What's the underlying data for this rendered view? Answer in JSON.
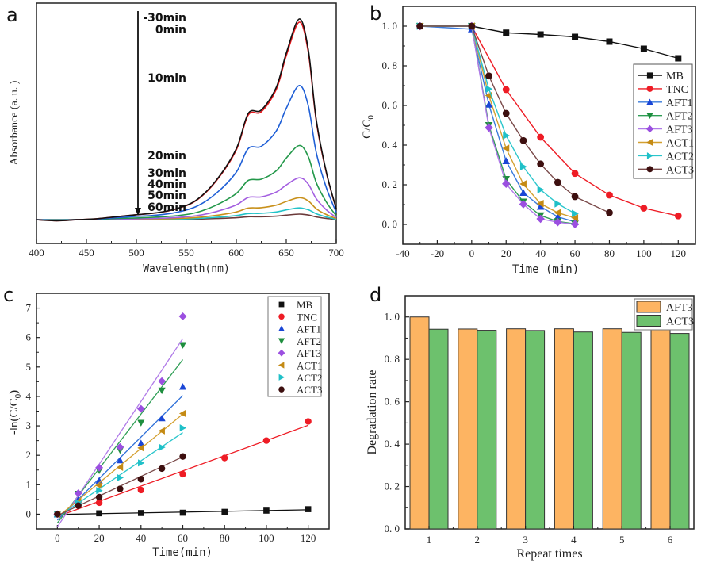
{
  "figure": {
    "panels": [
      "a",
      "b",
      "c",
      "d"
    ]
  },
  "chart_data": [
    {
      "panel": "a",
      "type": "line",
      "title": "",
      "xlabel": "Wavelength(nm)",
      "ylabel": "Absorbance (a. u. )",
      "xlim": [
        400,
        700
      ],
      "ylim": [
        -0.118,
        1.079
      ],
      "x_ticks": [
        400,
        450,
        500,
        550,
        600,
        650,
        700
      ],
      "y_ticks": [],
      "grid": false,
      "annotation": {
        "type": "arrow",
        "direction": "down",
        "meaning": "decreasing absorbance with irradiation time"
      },
      "x": [
        400,
        420,
        440,
        460,
        480,
        500,
        520,
        540,
        560,
        580,
        600,
        612,
        625,
        640,
        650,
        663,
        672,
        680,
        690,
        700
      ],
      "series": [
        {
          "name": "-30min",
          "color": "#111111",
          "values": [
            0,
            -0.005,
            0,
            0.005,
            0.015,
            0.025,
            0.035,
            0.055,
            0.098,
            0.197,
            0.354,
            0.53,
            0.547,
            0.66,
            0.83,
            1.0,
            0.85,
            0.5,
            0.24,
            0.055
          ]
        },
        {
          "name": "0min",
          "color": "#e8161b",
          "values": [
            0,
            -0.005,
            0,
            0.005,
            0.015,
            0.025,
            0.034,
            0.054,
            0.096,
            0.194,
            0.348,
            0.522,
            0.538,
            0.649,
            0.817,
            0.984,
            0.836,
            0.492,
            0.236,
            0.054
          ]
        },
        {
          "name": "10min",
          "color": "#1f5fd6",
          "values": [
            0,
            -0.003,
            0,
            0.003,
            0.01,
            0.017,
            0.023,
            0.037,
            0.066,
            0.132,
            0.237,
            0.355,
            0.366,
            0.442,
            0.555,
            0.669,
            0.569,
            0.335,
            0.161,
            0.037
          ]
        },
        {
          "name": "20min",
          "color": "#23984a",
          "values": [
            0,
            -0.002,
            0,
            0.002,
            0.006,
            0.009,
            0.013,
            0.02,
            0.036,
            0.073,
            0.131,
            0.196,
            0.202,
            0.244,
            0.307,
            0.37,
            0.315,
            0.185,
            0.089,
            0.02
          ]
        },
        {
          "name": "30min",
          "color": "#a35ee0",
          "values": [
            0,
            -0.001,
            0,
            0.001,
            0.003,
            0.005,
            0.007,
            0.011,
            0.02,
            0.041,
            0.074,
            0.111,
            0.114,
            0.138,
            0.173,
            0.209,
            0.178,
            0.105,
            0.05,
            0.011
          ]
        },
        {
          "name": "40min",
          "color": "#c8901a",
          "values": [
            0,
            -0.001,
            0,
            0.001,
            0.002,
            0.003,
            0.004,
            0.006,
            0.011,
            0.022,
            0.039,
            0.058,
            0.06,
            0.073,
            0.091,
            0.11,
            0.094,
            0.055,
            0.026,
            0.006
          ]
        },
        {
          "name": "50min",
          "color": "#22c3c8",
          "values": [
            0,
            0,
            0,
            0,
            0.001,
            0.001,
            0.002,
            0.003,
            0.006,
            0.012,
            0.021,
            0.031,
            0.032,
            0.039,
            0.049,
            0.059,
            0.05,
            0.03,
            0.014,
            0.003
          ]
        },
        {
          "name": "60min",
          "color": "#6b3a3a",
          "values": [
            0,
            0,
            0,
            0,
            0,
            0.001,
            0.001,
            0.002,
            0.003,
            0.006,
            0.01,
            0.015,
            0.015,
            0.018,
            0.023,
            0.028,
            0.024,
            0.014,
            0.007,
            0.002
          ]
        }
      ],
      "curve_labels": [
        "-30min",
        "0min",
        "10min",
        "20min",
        "30min",
        "40min",
        "50min",
        "60min"
      ]
    },
    {
      "panel": "b",
      "type": "line",
      "title": "",
      "xlabel": "Time (min)",
      "ylabel": "C/C0",
      "ylabel_main": "C/C",
      "ylabel_sub": "0",
      "xlim": [
        -40,
        130
      ],
      "ylim": [
        -0.1,
        1.1
      ],
      "x_ticks": [
        -40,
        -20,
        0,
        20,
        40,
        60,
        80,
        100,
        120
      ],
      "y_ticks": [
        0.0,
        0.2,
        0.4,
        0.6,
        0.8,
        1.0
      ],
      "x_tick_labels": [
        "-40",
        "-20",
        "0",
        "20",
        "40",
        "60",
        "80",
        "100",
        "120"
      ],
      "y_tick_labels": [
        "0. 0",
        "0. 2",
        "0. 4",
        "0. 6",
        "0. 8",
        "1. 0"
      ],
      "grid": false,
      "legend_position": "center-right",
      "series": [
        {
          "name": "MB",
          "color": "#111111",
          "marker": "square",
          "x": [
            -30,
            0,
            20,
            40,
            60,
            80,
            100,
            120
          ],
          "values": [
            1.0,
            1.0,
            0.967,
            0.958,
            0.946,
            0.922,
            0.886,
            0.838
          ]
        },
        {
          "name": "TNC",
          "color": "#ee1c25",
          "marker": "circle",
          "x": [
            -30,
            0,
            20,
            40,
            60,
            80,
            100,
            120
          ],
          "values": [
            1.0,
            1.0,
            0.68,
            0.44,
            0.257,
            0.148,
            0.082,
            0.043
          ]
        },
        {
          "name": "AFT1",
          "color": "#1a46d6",
          "line_color": "#3a7bdc",
          "marker": "triangle-up",
          "x": [
            -30,
            0,
            10,
            20,
            30,
            40,
            50,
            60
          ],
          "values": [
            1.0,
            0.985,
            0.605,
            0.32,
            0.16,
            0.09,
            0.038,
            0.013
          ]
        },
        {
          "name": "AFT2",
          "color": "#1e8e3e",
          "line_color": "#2e9e55",
          "marker": "triangle-down",
          "x": [
            -30,
            0,
            10,
            20,
            30,
            40,
            50,
            60
          ],
          "values": [
            1.0,
            1.0,
            0.5,
            0.228,
            0.114,
            0.045,
            0.015,
            0.003
          ]
        },
        {
          "name": "AFT3",
          "color": "#9b4fe0",
          "line_color": "#b07ae8",
          "marker": "diamond",
          "x": [
            -30,
            0,
            10,
            20,
            30,
            40,
            50,
            60
          ],
          "values": [
            1.0,
            1.0,
            0.488,
            0.205,
            0.102,
            0.028,
            0.011,
            0.001
          ]
        },
        {
          "name": "ACT1",
          "color": "#c48a14",
          "line_color": "#d4a030",
          "marker": "triangle-left",
          "x": [
            -30,
            0,
            10,
            20,
            30,
            40,
            50,
            60
          ],
          "values": [
            1.0,
            1.0,
            0.65,
            0.384,
            0.204,
            0.105,
            0.059,
            0.033
          ]
        },
        {
          "name": "ACT2",
          "color": "#1fc0c8",
          "line_color": "#2bc6cc",
          "marker": "triangle-right",
          "x": [
            -30,
            0,
            10,
            20,
            30,
            40,
            50,
            60
          ],
          "values": [
            1.0,
            1.0,
            0.683,
            0.448,
            0.291,
            0.175,
            0.104,
            0.055
          ]
        },
        {
          "name": "ACT3",
          "color": "#3d0f0f",
          "line_color": "#7a4a4a",
          "marker": "circle",
          "x": [
            -30,
            0,
            10,
            20,
            30,
            40,
            50,
            60,
            80
          ],
          "values": [
            1.0,
            1.0,
            0.749,
            0.56,
            0.423,
            0.305,
            0.212,
            0.14,
            0.059
          ]
        }
      ]
    },
    {
      "panel": "c",
      "type": "scatter",
      "title": "",
      "xlabel": "Time(min)",
      "ylabel": "-ln(C/C0)",
      "ylabel_main": "-ln(C/C",
      "ylabel_sub": "0",
      "ylabel_end": ")",
      "xlim": [
        -10,
        130
      ],
      "ylim": [
        -0.5,
        7.5
      ],
      "x_ticks": [
        0,
        20,
        40,
        60,
        80,
        100,
        120
      ],
      "y_ticks": [
        0,
        1,
        2,
        3,
        4,
        5,
        6,
        7
      ],
      "grid": false,
      "legend_position": "top-right",
      "series": [
        {
          "name": "MB",
          "color": "#111111",
          "marker": "square",
          "x": [
            0,
            20,
            40,
            60,
            80,
            100,
            120
          ],
          "values": [
            0,
            0.03,
            0.04,
            0.05,
            0.08,
            0.12,
            0.17
          ],
          "fit": {
            "x": [
              0,
              120
            ],
            "y": [
              -0.01,
              0.15
            ]
          }
        },
        {
          "name": "TNC",
          "color": "#ee1c25",
          "marker": "circle",
          "x": [
            0,
            20,
            40,
            60,
            80,
            100,
            120
          ],
          "values": [
            0,
            0.39,
            0.82,
            1.36,
            1.91,
            2.5,
            3.15
          ],
          "fit": {
            "x": [
              0,
              120
            ],
            "y": [
              -0.08,
              3.02
            ]
          }
        },
        {
          "name": "AFT1",
          "color": "#1a46d6",
          "line_color": "#2d6fd8",
          "marker": "triangle-up",
          "x": [
            0,
            10,
            20,
            30,
            40,
            50,
            60
          ],
          "values": [
            0,
            0.5,
            1.14,
            1.83,
            2.41,
            3.26,
            4.33
          ],
          "fit": {
            "x": [
              0,
              60
            ],
            "y": [
              -0.2,
              4.03
            ]
          }
        },
        {
          "name": "AFT2",
          "color": "#1e8e3e",
          "line_color": "#2e9e55",
          "marker": "triangle-down",
          "x": [
            0,
            10,
            20,
            30,
            40,
            50,
            60
          ],
          "values": [
            0,
            0.69,
            1.48,
            2.17,
            3.1,
            4.2,
            5.74
          ],
          "fit": {
            "x": [
              0,
              60
            ],
            "y": [
              -0.3,
              5.25
            ]
          }
        },
        {
          "name": "AFT3",
          "color": "#9b4fe0",
          "line_color": "#b07ae8",
          "marker": "diamond",
          "x": [
            0,
            10,
            20,
            30,
            40,
            50,
            60
          ],
          "values": [
            0,
            0.71,
            1.58,
            2.28,
            3.58,
            4.52,
            6.72
          ],
          "fit": {
            "x": [
              0,
              60
            ],
            "y": [
              -0.43,
              5.96
            ]
          }
        },
        {
          "name": "ACT1",
          "color": "#c48a14",
          "line_color": "#d4a030",
          "marker": "triangle-left",
          "x": [
            0,
            10,
            20,
            30,
            40,
            50,
            60
          ],
          "values": [
            0,
            0.43,
            0.97,
            1.59,
            2.25,
            2.83,
            3.42
          ],
          "fit": {
            "x": [
              0,
              60
            ],
            "y": [
              -0.1,
              3.4
            ]
          }
        },
        {
          "name": "ACT2",
          "color": "#1fc0c8",
          "line_color": "#2bc6cc",
          "marker": "triangle-right",
          "x": [
            0,
            10,
            20,
            30,
            40,
            50,
            60
          ],
          "values": [
            0,
            0.38,
            0.8,
            1.24,
            1.74,
            2.27,
            2.93
          ],
          "fit": {
            "x": [
              0,
              60
            ],
            "y": [
              -0.1,
              2.77
            ]
          }
        },
        {
          "name": "ACT3",
          "color": "#3d0f0f",
          "line_color": "#7a4a4a",
          "marker": "circle",
          "x": [
            0,
            10,
            20,
            30,
            40,
            50,
            60
          ],
          "values": [
            0,
            0.29,
            0.58,
            0.86,
            1.19,
            1.55,
            1.96
          ],
          "fit": {
            "x": [
              0,
              60
            ],
            "y": [
              -0.05,
              1.95
            ]
          }
        }
      ]
    },
    {
      "panel": "d",
      "type": "bar",
      "title": "",
      "xlabel": "Repeat times",
      "ylabel": "Degradation rate",
      "categories": [
        "1",
        "2",
        "3",
        "4",
        "5",
        "6"
      ],
      "ylim": [
        0,
        1.1
      ],
      "y_ticks": [
        0.0,
        0.2,
        0.4,
        0.6,
        0.8,
        1.0
      ],
      "y_tick_labels": [
        "0. 0",
        "0. 2",
        "0. 4",
        "0. 6",
        "0. 8",
        "1. 0"
      ],
      "grid": false,
      "legend_position": "top-right",
      "series": [
        {
          "name": "AFT3",
          "color": "#fdb462",
          "values": [
            1.0,
            0.943,
            0.944,
            0.944,
            0.944,
            0.941
          ]
        },
        {
          "name": "ACT3",
          "color": "#6dc16d",
          "values": [
            0.942,
            0.937,
            0.936,
            0.929,
            0.927,
            0.922
          ]
        }
      ]
    }
  ]
}
